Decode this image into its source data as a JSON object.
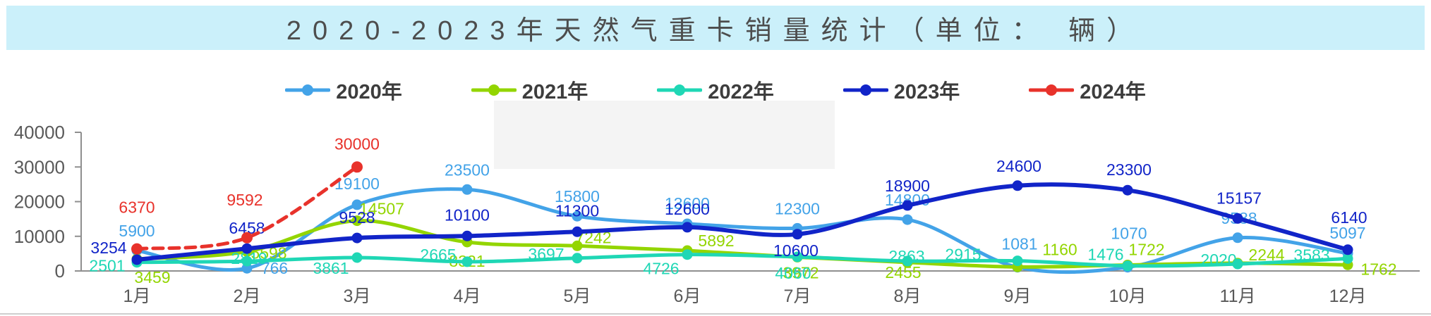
{
  "title": {
    "text": "2020-2023年天然气重卡销量统计（单位： 辆）"
  },
  "chart_data": {
    "type": "line",
    "title": "2020-2023年天然气重卡销量统计（单位： 辆）",
    "categories": [
      "1月",
      "2月",
      "3月",
      "4月",
      "5月",
      "6月",
      "7月",
      "8月",
      "9月",
      "10月",
      "11月",
      "12月"
    ],
    "series": [
      {
        "name": "2020年",
        "color": "#43a3e8",
        "dashed": false,
        "values": [
          5900,
          766,
          19100,
          23500,
          15800,
          13600,
          12300,
          14800,
          1081,
          1070,
          9588,
          5097
        ]
      },
      {
        "name": "2021年",
        "color": "#93d500",
        "dashed": false,
        "values": [
          3459,
          5598,
          14507,
          8321,
          7242,
          5892,
          3972,
          2455,
          1160,
          1722,
          2244,
          1762
        ]
      },
      {
        "name": "2022年",
        "color": "#1fd7b5",
        "dashed": false,
        "values": [
          2501,
          2819,
          3861,
          2665,
          3697,
          4726,
          4060,
          2863,
          2915,
          1476,
          2020,
          3583
        ]
      },
      {
        "name": "2023年",
        "color": "#1124c8",
        "dashed": false,
        "values": [
          3254,
          6458,
          9528,
          10100,
          11300,
          12600,
          10600,
          18900,
          24600,
          23300,
          15157,
          6140
        ]
      },
      {
        "name": "2024年",
        "color": "#e8322b",
        "dashed": true,
        "values": [
          6370,
          9592,
          30000
        ]
      }
    ],
    "xlabel": "",
    "ylabel": "",
    "ylim": [
      0,
      40000
    ],
    "yticks": [
      0,
      10000,
      20000,
      30000,
      40000
    ],
    "grid": false,
    "legend_position": "top",
    "marker": "circle"
  }
}
